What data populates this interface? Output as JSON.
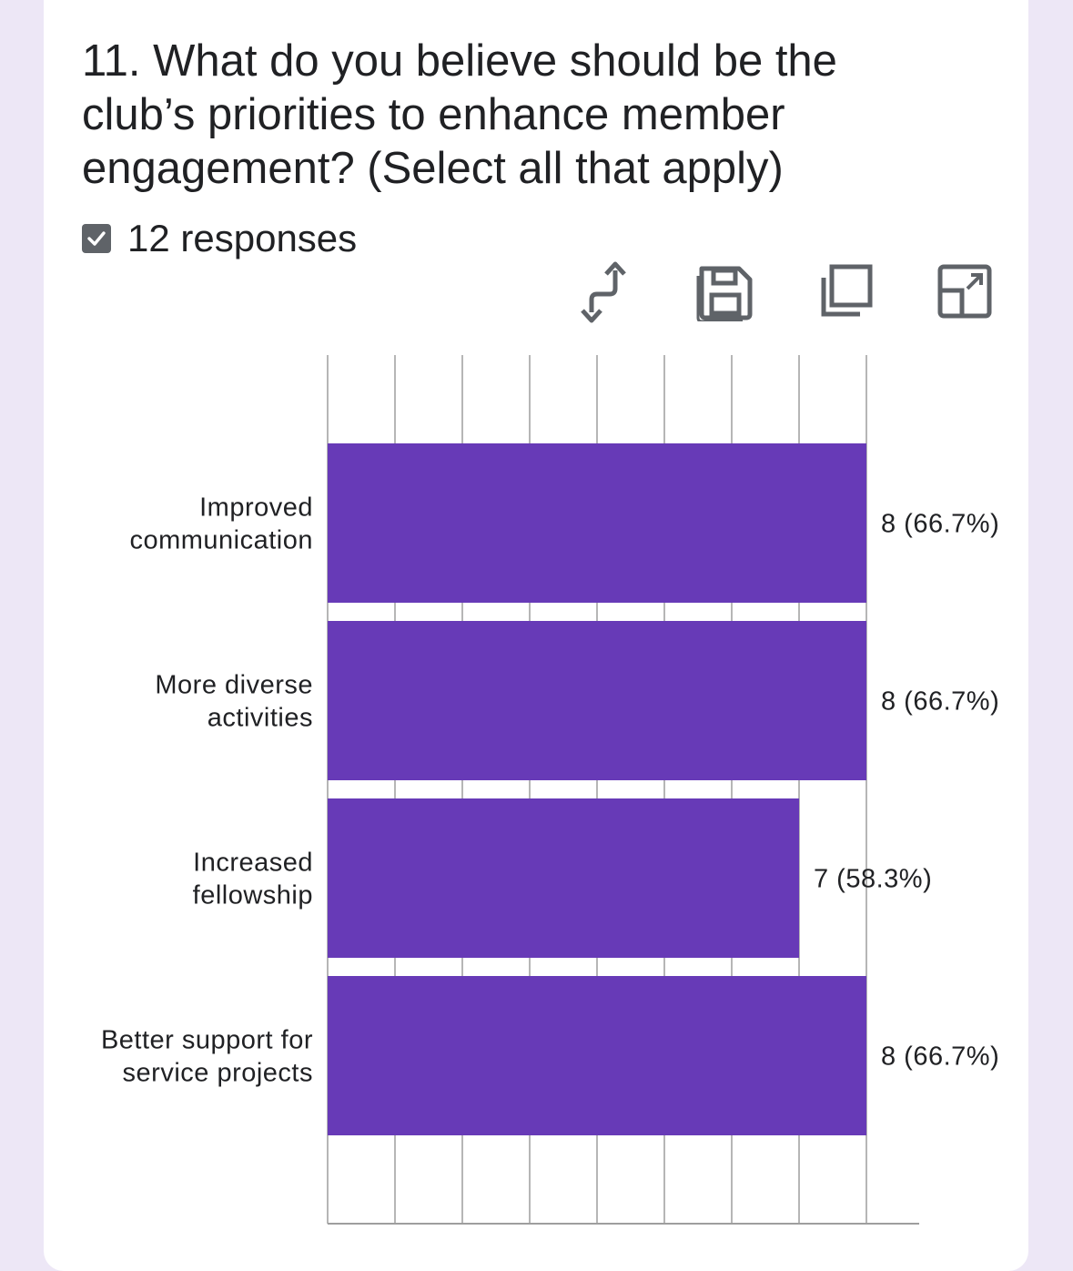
{
  "question": {
    "title": "11. What do you believe should be the club’s priorities to enhance member engagement? (Select all that apply)",
    "responses": "12 responses"
  },
  "toolbar": {
    "icons": [
      "swap-axes-icon",
      "save-icon",
      "copy-icon",
      "expand-icon"
    ]
  },
  "colors": {
    "bar": "#673ab7",
    "grid": "#9e9e9e",
    "background": "#ede7f6"
  },
  "chart_data": {
    "type": "bar",
    "orientation": "horizontal",
    "categories": [
      [
        "Improved",
        "communication"
      ],
      [
        "More diverse",
        "activities"
      ],
      [
        "Increased",
        "fellowship"
      ],
      [
        "Better support for",
        "service projects"
      ]
    ],
    "values": [
      8,
      8,
      7,
      8
    ],
    "labels": [
      "8 (66.7%)",
      "8 (66.7%)",
      "7 (58.3%)",
      "8 (66.7%)"
    ],
    "xlim": [
      0,
      8.8
    ],
    "grid": true
  }
}
